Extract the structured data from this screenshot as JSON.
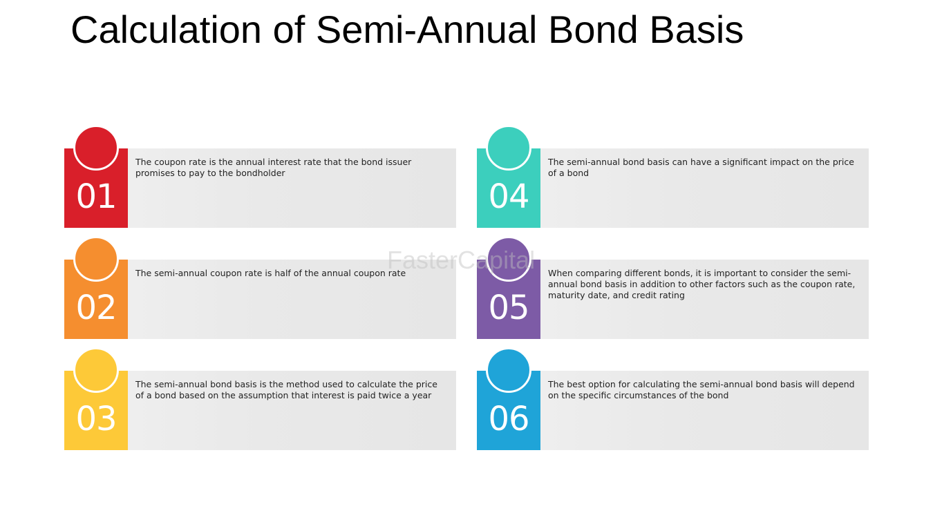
{
  "title": "Calculation of Semi-Annual Bond Basis",
  "watermark": "FasterCapital",
  "items": [
    {
      "number": "01",
      "color": "#d91f2a",
      "text": "The coupon rate is the annual interest rate that the bond issuer promises to pay to the bondholder"
    },
    {
      "number": "02",
      "color": "#f58e2f",
      "text": "The semi-annual coupon rate is half of the annual coupon rate"
    },
    {
      "number": "03",
      "color": "#fdc938",
      "text": "The semi-annual bond basis is the method used to calculate the price of a bond based on the assumption that interest is paid twice a year"
    },
    {
      "number": "04",
      "color": "#3ccfbd",
      "text": "The semi-annual bond basis can have a significant impact on the price of a bond"
    },
    {
      "number": "05",
      "color": "#7d5ba6",
      "text": "When comparing different bonds, it is important to consider the semi-annual bond basis in addition to other factors such as the coupon rate, maturity date, and credit rating"
    },
    {
      "number": "06",
      "color": "#1fa4d8",
      "text": "The best option for calculating the semi-annual bond basis will depend on the specific circumstances of the bond"
    }
  ]
}
